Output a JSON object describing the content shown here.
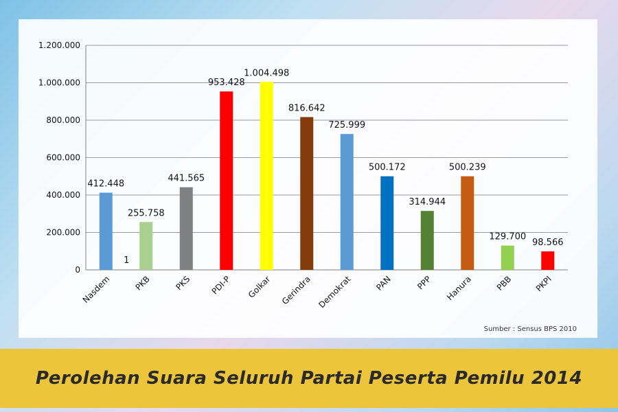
{
  "chart_data": {
    "type": "bar",
    "title": "Perolehan Suara Seluruh Partai Peserta Pemilu 2014",
    "source": "Sumber : Sensus BPS 2010",
    "categories": [
      "Nasdem",
      "PKB",
      "PKS",
      "PDI-P",
      "Golkar",
      "Gerindra",
      "Demokrat",
      "PAN",
      "PPP",
      "Hanura",
      "PBB",
      "PKPI"
    ],
    "values": [
      412448,
      255758,
      441565,
      953428,
      1004498,
      816642,
      725999,
      500172,
      314944,
      500239,
      129700,
      98566
    ],
    "labels": [
      "412.448",
      "255.758",
      "441.565",
      "953.428",
      "1.004.498",
      "816.642",
      "725.999",
      "500.172",
      "314.944",
      "500.239",
      "129.700",
      "98.566"
    ],
    "colors": [
      "#5b9bd5",
      "#a9d08e",
      "#808080",
      "#ff0000",
      "#ffff00",
      "#843c0c",
      "#5b9bd5",
      "#0070c0",
      "#548235",
      "#c55a11",
      "#92d050",
      "#ff0000"
    ],
    "extra_label": "1",
    "yticks": [
      0,
      200000,
      400000,
      600000,
      800000,
      1000000,
      1200000
    ],
    "ytick_labels": [
      "0",
      "200.000",
      "400.000",
      "600.000",
      "800.000",
      "1.000.000",
      "1.200.000"
    ],
    "ylim": [
      0,
      1200000
    ],
    "grid": true,
    "xlabel": "",
    "ylabel": ""
  }
}
